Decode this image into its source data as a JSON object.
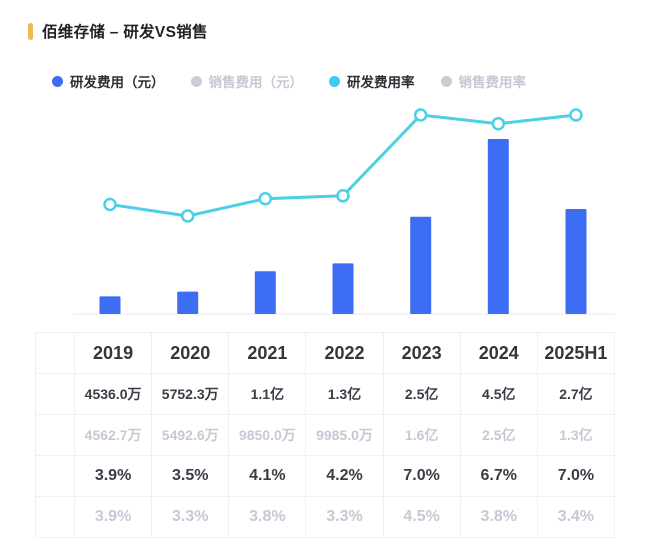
{
  "header": {
    "title": "佰维存储 – 研发VS销售"
  },
  "colors": {
    "title_accent": "#ECBB4D",
    "bar_blue": "#3D6DF2",
    "line_cyan": "#4BD0E4",
    "dot_blue": "#3A6FF0",
    "dot_yellow": "#F2C33E",
    "dot_cyan": "#3EC9EE",
    "dot_orange": "#E98A3E",
    "dot_gray": "#C9CDD5",
    "axis_line": "#f0f1f4"
  },
  "legend": [
    {
      "label": "研发费用（元）",
      "color": "#3D6DF2",
      "active": true
    },
    {
      "label": "销售费用（元）",
      "color": "#C9CDD5",
      "active": false
    },
    {
      "label": "研发费用率",
      "color": "#3EC9EE",
      "active": true
    },
    {
      "label": "销售费用率",
      "color": "#C9CDD5",
      "active": false
    }
  ],
  "chart_data": {
    "type": "bar",
    "title": "佰维存储 – 研发VS销售",
    "categories": [
      "2019",
      "2020",
      "2021",
      "2022",
      "2023",
      "2024",
      "2025H1"
    ],
    "series": [
      {
        "name": "研发费用（元）",
        "type": "bar",
        "color": "#3D6DF2",
        "visible": true,
        "unit": "万元",
        "values": [
          4536.0,
          5752.3,
          11000,
          13000,
          25000,
          45000,
          27000
        ],
        "display": [
          "4536.0万",
          "5752.3万",
          "1.1亿",
          "1.3亿",
          "2.5亿",
          "4.5亿",
          "2.7亿"
        ],
        "axis_max": 45000
      },
      {
        "name": "销售费用（元）",
        "type": "bar",
        "color": "#F2C33E",
        "visible": false,
        "unit": "万元",
        "values": [
          4562.7,
          5492.6,
          9850.0,
          9985.0,
          16000,
          25000,
          13000
        ],
        "display": [
          "4562.7万",
          "5492.6万",
          "9850.0万",
          "9985.0万",
          "1.6亿",
          "2.5亿",
          "1.3亿"
        ]
      },
      {
        "name": "研发费用率",
        "type": "line",
        "color": "#4BD0E4",
        "visible": true,
        "unit": "%",
        "values": [
          3.9,
          3.5,
          4.1,
          4.2,
          7.0,
          6.7,
          7.0
        ],
        "display": [
          "3.9%",
          "3.5%",
          "4.1%",
          "4.2%",
          "7.0%",
          "6.7%",
          "7.0%"
        ],
        "axis_max": 7.0
      },
      {
        "name": "销售费用率",
        "type": "line",
        "color": "#E98A3E",
        "visible": false,
        "unit": "%",
        "values": [
          3.9,
          3.3,
          3.8,
          3.3,
          4.5,
          3.8,
          3.4
        ],
        "display": [
          "3.9%",
          "3.3%",
          "3.8%",
          "3.3%",
          "4.5%",
          "3.8%",
          "3.4%"
        ]
      }
    ],
    "grid": false,
    "legend_position": "top",
    "marker_style": "open-circle"
  },
  "table": {
    "columns": [
      "2019",
      "2020",
      "2021",
      "2022",
      "2023",
      "2024",
      "2025H1"
    ],
    "rows": [
      {
        "series": "研发费用（元）",
        "dot_color": "#3A6FF0",
        "active": true,
        "kind": "money",
        "values": [
          "4536.0万",
          "5752.3万",
          "1.1亿",
          "1.3亿",
          "2.5亿",
          "4.5亿",
          "2.7亿"
        ]
      },
      {
        "series": "销售费用（元）",
        "dot_color": "#F2C33E",
        "active": false,
        "kind": "money",
        "values": [
          "4562.7万",
          "5492.6万",
          "9850.0万",
          "9985.0万",
          "1.6亿",
          "2.5亿",
          "1.3亿"
        ]
      },
      {
        "series": "研发费用率",
        "dot_color": "#3EC9EE",
        "active": true,
        "kind": "pct",
        "values": [
          "3.9%",
          "3.5%",
          "4.1%",
          "4.2%",
          "7.0%",
          "6.7%",
          "7.0%"
        ]
      },
      {
        "series": "销售费用率",
        "dot_color": "#E98A3E",
        "active": false,
        "kind": "pct",
        "values": [
          "3.9%",
          "3.3%",
          "3.8%",
          "3.3%",
          "4.5%",
          "3.8%",
          "3.4%"
        ]
      }
    ]
  }
}
